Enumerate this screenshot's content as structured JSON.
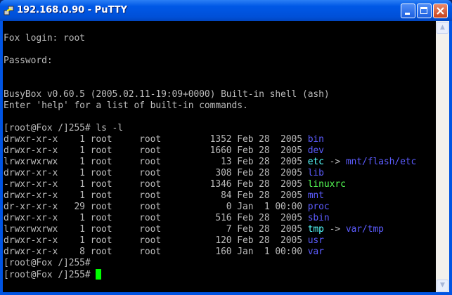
{
  "window": {
    "title": "192.168.0.90 - PuTTY"
  },
  "colors": {
    "text": "#bbbbbb",
    "directory": "#5c5cff",
    "symlink": "#55ffff",
    "executable": "#55ff55",
    "cursor": "#00ff00"
  },
  "terminal": {
    "intro_lines": [
      "",
      "Fox login: root",
      "",
      "Password:",
      "",
      "",
      "BusyBox v0.60.5 (2005.02.11-19:09+0000) Built-in shell (ash)",
      "Enter 'help' for a list of built-in commands.",
      ""
    ],
    "command_prompt": "[root@Fox /]255# ls -l",
    "listing": [
      {
        "perms": "drwxr-xr-x",
        "links": "1",
        "owner": "root",
        "group": "root",
        "size": "1352",
        "date": "Feb 28  2005",
        "name": "bin",
        "type": "dir"
      },
      {
        "perms": "drwxr-xr-x",
        "links": "1",
        "owner": "root",
        "group": "root",
        "size": "1660",
        "date": "Feb 28  2005",
        "name": "dev",
        "type": "dir"
      },
      {
        "perms": "lrwxrwxrwx",
        "links": "1",
        "owner": "root",
        "group": "root",
        "size": "13",
        "date": "Feb 28  2005",
        "name": "etc",
        "type": "link",
        "target": "mnt/flash/etc"
      },
      {
        "perms": "drwxr-xr-x",
        "links": "1",
        "owner": "root",
        "group": "root",
        "size": "308",
        "date": "Feb 28  2005",
        "name": "lib",
        "type": "dir"
      },
      {
        "perms": "-rwxr-xr-x",
        "links": "1",
        "owner": "root",
        "group": "root",
        "size": "1346",
        "date": "Feb 28  2005",
        "name": "linuxrc",
        "type": "exe"
      },
      {
        "perms": "drwxr-xr-x",
        "links": "1",
        "owner": "root",
        "group": "root",
        "size": "84",
        "date": "Feb 28  2005",
        "name": "mnt",
        "type": "dir"
      },
      {
        "perms": "dr-xr-xr-x",
        "links": "29",
        "owner": "root",
        "group": "root",
        "size": "0",
        "date": "Jan  1 00:00",
        "name": "proc",
        "type": "dir"
      },
      {
        "perms": "drwxr-xr-x",
        "links": "1",
        "owner": "root",
        "group": "root",
        "size": "516",
        "date": "Feb 28  2005",
        "name": "sbin",
        "type": "dir"
      },
      {
        "perms": "lrwxrwxrwx",
        "links": "1",
        "owner": "root",
        "group": "root",
        "size": "7",
        "date": "Feb 28  2005",
        "name": "tmp",
        "type": "link",
        "target": "var/tmp"
      },
      {
        "perms": "drwxr-xr-x",
        "links": "1",
        "owner": "root",
        "group": "root",
        "size": "120",
        "date": "Feb 28  2005",
        "name": "usr",
        "type": "dir"
      },
      {
        "perms": "drwxr-xr-x",
        "links": "8",
        "owner": "root",
        "group": "root",
        "size": "160",
        "date": "Jan  1 00:00",
        "name": "var",
        "type": "dir"
      }
    ],
    "trailing_prompts": [
      "[root@Fox /]255# ",
      "[root@Fox /]255# "
    ]
  }
}
